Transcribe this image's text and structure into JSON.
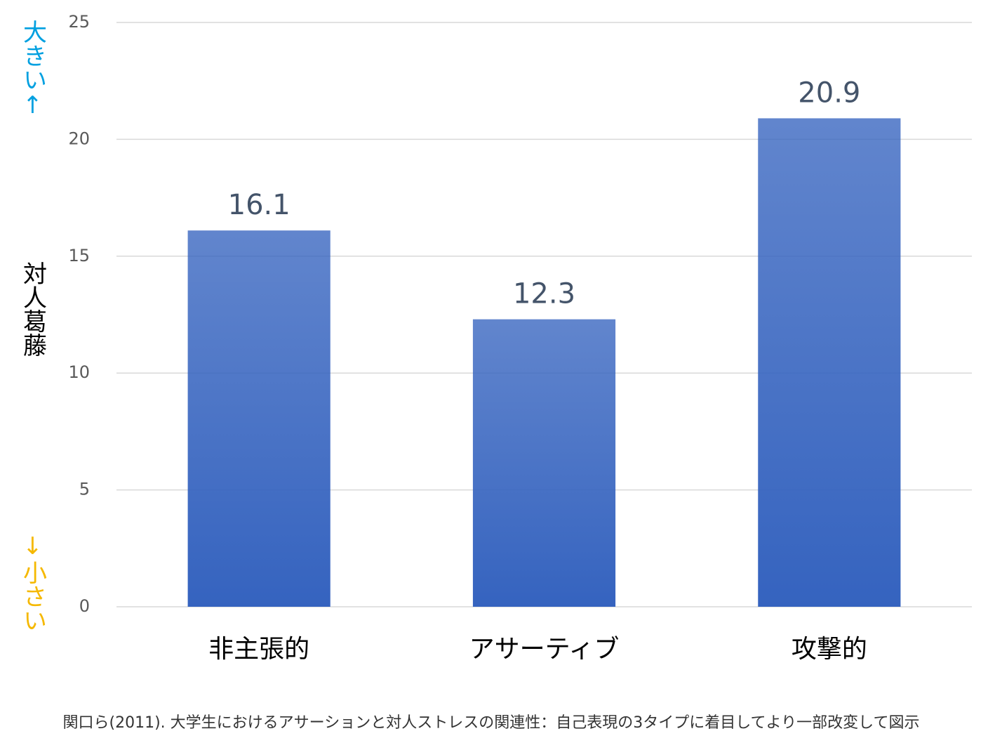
{
  "chart_data": {
    "type": "bar",
    "categories": [
      "非主張的",
      "アサーティブ",
      "攻撃的"
    ],
    "values": [
      16.1,
      12.3,
      20.9
    ],
    "color": "#3563bf",
    "ylim": [
      0,
      25
    ],
    "yticks": [
      0,
      5,
      10,
      15,
      20,
      25
    ],
    "grid": true,
    "y_label_top": "大きい↑",
    "ylabel": "対人葛藤",
    "y_label_bottom": "↓小さい",
    "caption": "関口ら(2011). 大学生におけるアサーションと対人ストレスの関連性：自己表現の3タイプに着目してより一部改変して図示"
  }
}
